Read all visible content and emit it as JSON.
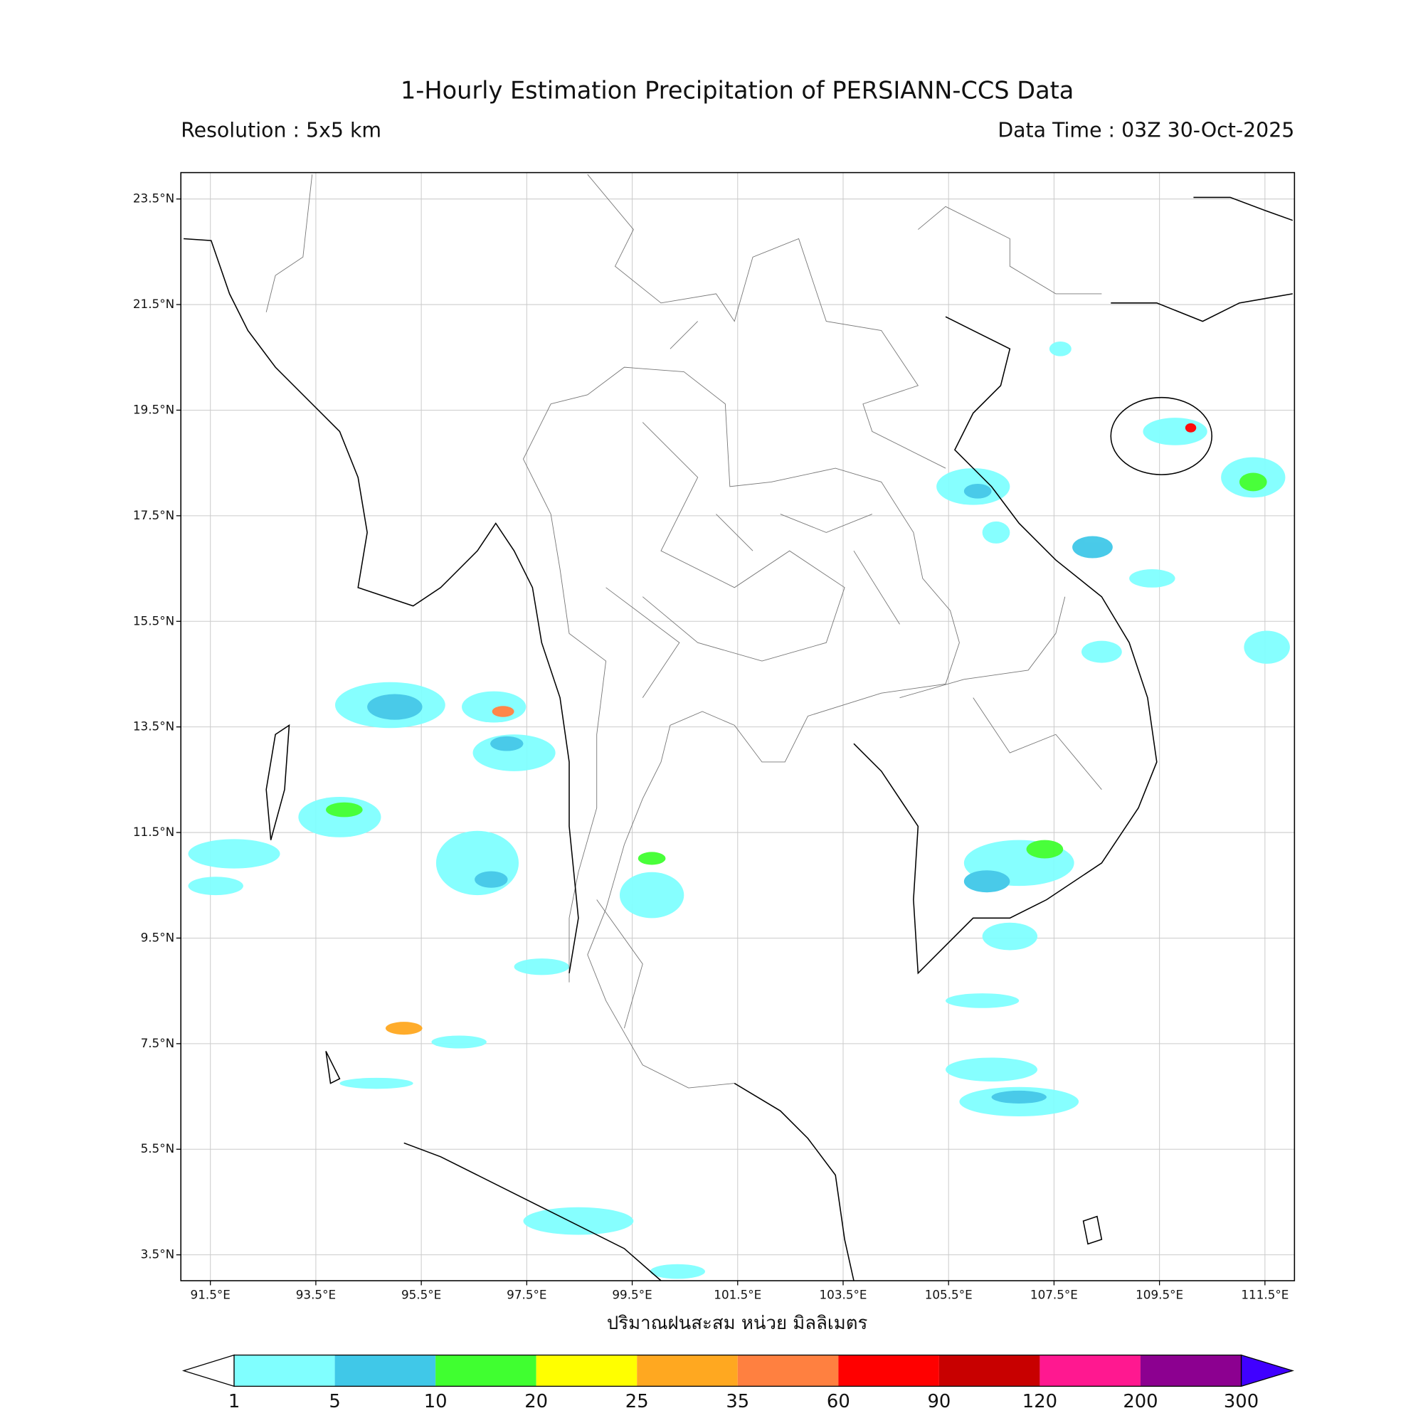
{
  "header": {
    "title": "1-Hourly Estimation Precipitation of PERSIANN-CCS Data",
    "resolution": "Resolution : 5x5 km",
    "data_time": "Data Time : 03Z 30-Oct-2025"
  },
  "map": {
    "xlim": [
      90.94,
      112.06
    ],
    "ylim": [
      3.01,
      24.0
    ],
    "xticks": [
      {
        "value": 91.5,
        "label": "91.5°E"
      },
      {
        "value": 93.5,
        "label": "93.5°E"
      },
      {
        "value": 95.5,
        "label": "95.5°E"
      },
      {
        "value": 97.5,
        "label": "97.5°E"
      },
      {
        "value": 99.5,
        "label": "99.5°E"
      },
      {
        "value": 101.5,
        "label": "101.5°E"
      },
      {
        "value": 103.5,
        "label": "103.5°E"
      },
      {
        "value": 105.5,
        "label": "105.5°E"
      },
      {
        "value": 107.5,
        "label": "107.5°E"
      },
      {
        "value": 109.5,
        "label": "109.5°E"
      },
      {
        "value": 111.5,
        "label": "111.5°E"
      }
    ],
    "yticks": [
      {
        "value": 23.5,
        "label": "23.5°N"
      },
      {
        "value": 21.5,
        "label": "21.5°N"
      },
      {
        "value": 19.5,
        "label": "19.5°N"
      },
      {
        "value": 17.5,
        "label": "17.5°N"
      },
      {
        "value": 15.5,
        "label": "15.5°N"
      },
      {
        "value": 13.5,
        "label": "13.5°N"
      },
      {
        "value": 11.5,
        "label": "11.5°N"
      },
      {
        "value": 9.5,
        "label": "9.5°N"
      },
      {
        "value": 7.5,
        "label": "7.5°N"
      },
      {
        "value": 5.5,
        "label": "5.5°N"
      },
      {
        "value": 3.5,
        "label": "3.5°N"
      }
    ],
    "xlabel": "ปริมาณฝนสะสม หน่วย มิลลิเมตร"
  },
  "colorbar": {
    "levels": [
      1,
      5,
      10,
      20,
      25,
      35,
      60,
      90,
      120,
      200,
      300
    ],
    "colors": [
      "#80ffff",
      "#40c8e8",
      "#40ff30",
      "#ffff00",
      "#ffa820",
      "#ff8040",
      "#ff0000",
      "#c80000",
      "#ff1890",
      "#8c0090"
    ],
    "under_color": "#ffffff",
    "over_color": "#4000ff"
  }
}
